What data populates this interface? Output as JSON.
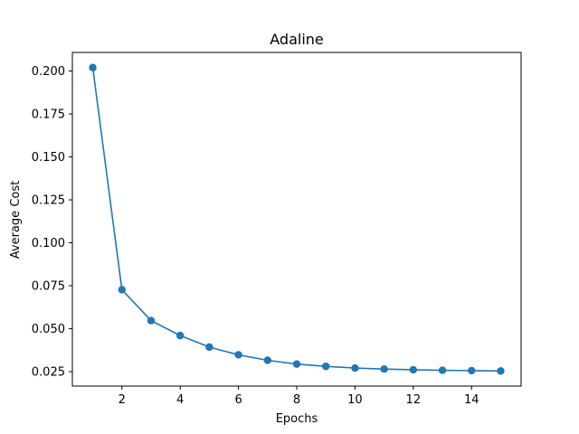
{
  "chart_data": {
    "type": "line",
    "title": "Adaline",
    "xlabel": "Epochs",
    "ylabel": "Average Cost",
    "x": [
      1,
      2,
      3,
      4,
      5,
      6,
      7,
      8,
      9,
      10,
      11,
      12,
      13,
      14,
      15
    ],
    "series": [
      {
        "values": [
          0.202,
          0.0727,
          0.0547,
          0.046,
          0.0393,
          0.0348,
          0.0316,
          0.0294,
          0.0281,
          0.0271,
          0.0265,
          0.0261,
          0.0258,
          0.0256,
          0.0254
        ],
        "color": "#1f77b4",
        "marker": "circle"
      }
    ],
    "xlim": [
      0.3,
      15.7
    ],
    "ylim": [
      0.0166,
      0.2108
    ],
    "xticks": [
      2,
      4,
      6,
      8,
      10,
      12,
      14
    ],
    "xtick_labels": [
      "2",
      "4",
      "6",
      "8",
      "10",
      "12",
      "14"
    ],
    "yticks": [
      0.025,
      0.05,
      0.075,
      0.1,
      0.125,
      0.15,
      0.175,
      0.2
    ],
    "ytick_labels": [
      "0.025",
      "0.050",
      "0.075",
      "0.100",
      "0.125",
      "0.150",
      "0.175",
      "0.200"
    ],
    "grid": false,
    "legend": "none"
  }
}
